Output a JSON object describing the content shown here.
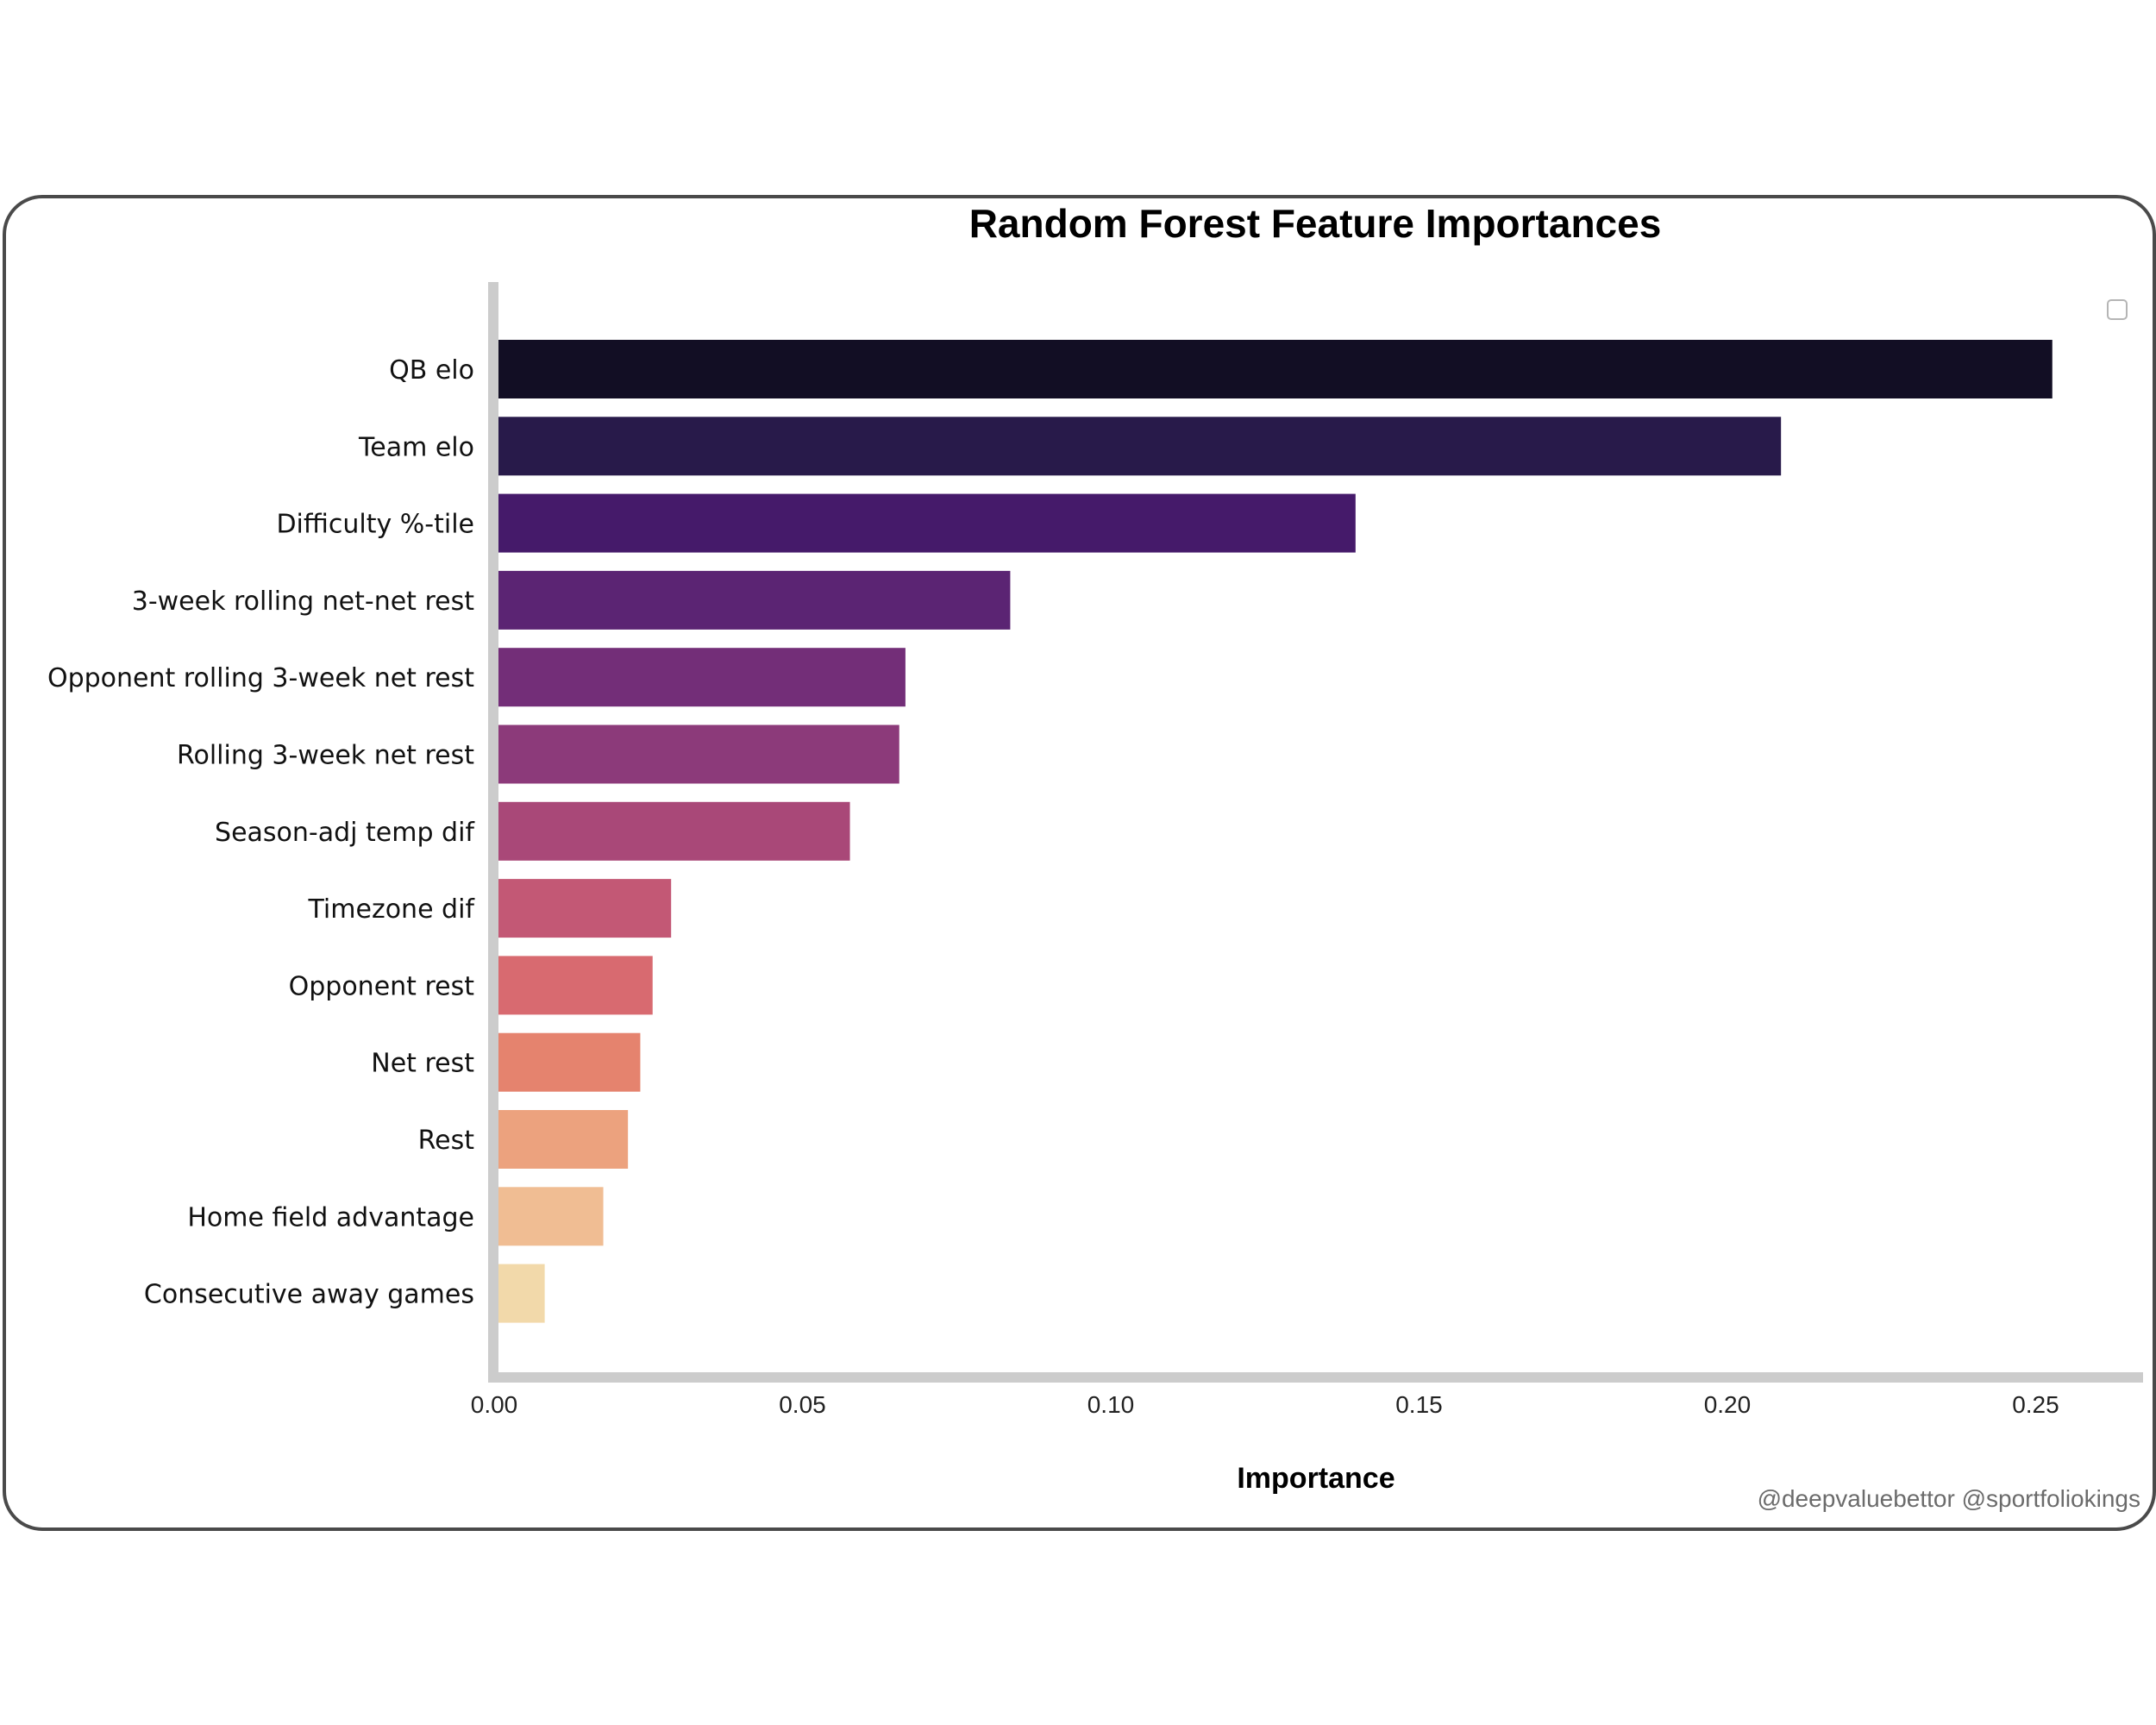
{
  "watermark": "@deepvaluebettor @sportfoliokings",
  "chart_data": {
    "type": "bar",
    "orientation": "horizontal",
    "title": "Random Forest Feature Importances",
    "xlabel": "Importance",
    "ylabel": "",
    "xlim": [
      0,
      0.267
    ],
    "xticks": [
      "0.00",
      "0.05",
      "0.10",
      "0.15",
      "0.20",
      "0.25"
    ],
    "xtick_values": [
      0,
      0.05,
      0.1,
      0.15,
      0.2,
      0.25
    ],
    "grid": false,
    "categories": [
      "QB elo",
      "Team elo",
      "Difficulty %-tile",
      "3-week rolling net-net rest",
      "Opponent rolling 3-week net rest",
      "Rolling 3-week net rest",
      "Season-adj temp dif",
      "Timezone dif",
      "Opponent rest",
      "Net rest",
      "Rest",
      "Home field advantage",
      "Consecutive away games"
    ],
    "values": [
      0.252,
      0.208,
      0.139,
      0.083,
      0.066,
      0.065,
      0.057,
      0.028,
      0.025,
      0.023,
      0.021,
      0.017,
      0.0075
    ],
    "colors": [
      "#120e24",
      "#281a4a",
      "#451a6a",
      "#5b2473",
      "#732e78",
      "#8c3a7a",
      "#a94878",
      "#c35875",
      "#d86a70",
      "#e5836e",
      "#eca27e",
      "#f0bd93",
      "#f2d9aa"
    ]
  }
}
